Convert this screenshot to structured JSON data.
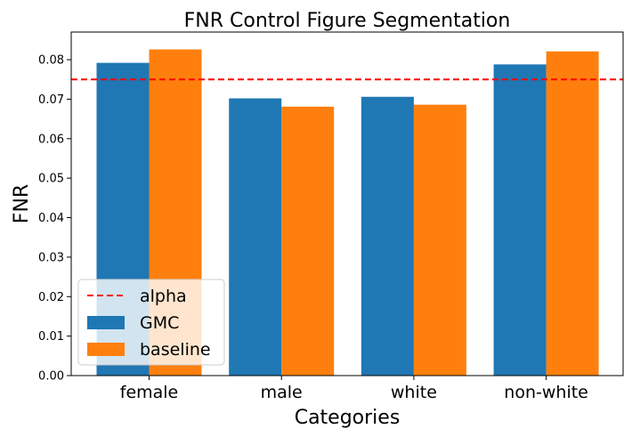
{
  "chart_data": {
    "type": "bar",
    "title": "FNR Control Figure Segmentation",
    "xlabel": "Categories",
    "ylabel": "FNR",
    "categories": [
      "female",
      "male",
      "white",
      "non-white"
    ],
    "series": [
      {
        "name": "GMC",
        "color": "#1f77b4",
        "values": [
          0.0792,
          0.0702,
          0.0706,
          0.0788
        ]
      },
      {
        "name": "baseline",
        "color": "#ff7f0e",
        "values": [
          0.0826,
          0.0681,
          0.0686,
          0.0821
        ]
      }
    ],
    "reference_line": {
      "name": "alpha",
      "value": 0.075,
      "color": "#ff0000",
      "style": "dashed"
    },
    "ylim": [
      0,
      0.087
    ],
    "yticks": [
      "0.00",
      "0.01",
      "0.02",
      "0.03",
      "0.04",
      "0.05",
      "0.06",
      "0.07",
      "0.08"
    ],
    "legend": {
      "placement": "bottom-left",
      "entries": [
        "alpha",
        "GMC",
        "baseline"
      ]
    },
    "grid": false
  }
}
